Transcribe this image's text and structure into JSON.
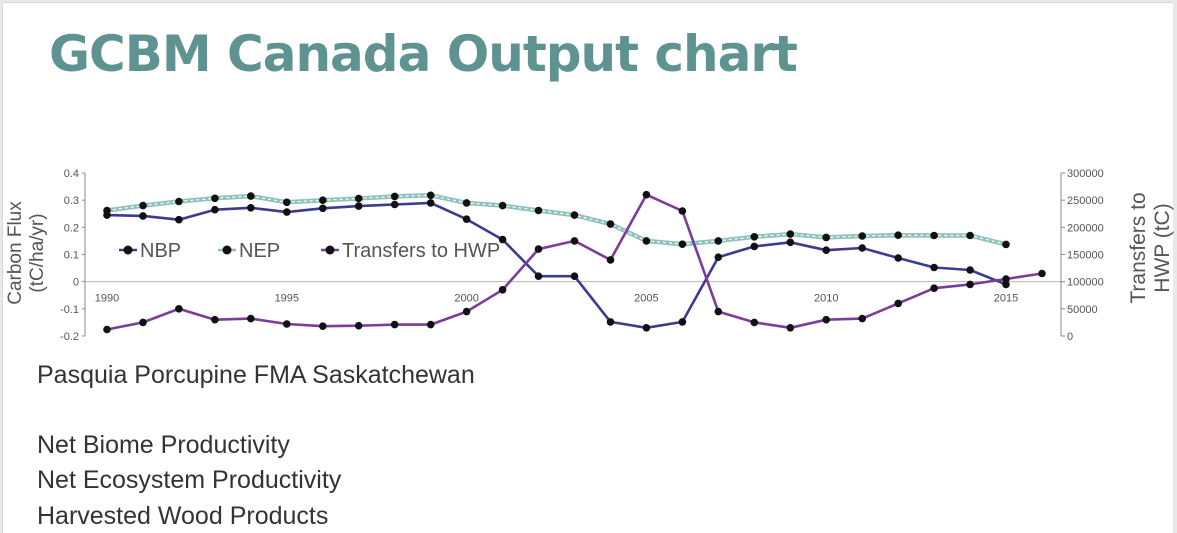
{
  "title": "GCBM Canada Output chart",
  "captions": {
    "location": "Pasquia Porcupine FMA Saskatchewan",
    "nbp": "Net Biome Productivity",
    "nep": "Net Ecosystem Productivity",
    "hwp": "Harvested Wood Products"
  },
  "colors": {
    "nbp": "#3b3b8f",
    "nep": "#8fc1bd",
    "hwp": "#7b3c9a",
    "title": "#5e9391"
  },
  "chart_data": {
    "type": "line",
    "ylabel": "Carbon Flux (tC/ha/yr)",
    "y2label": "Transfers to HWP (tC)",
    "ylim": [
      -0.2,
      0.4
    ],
    "y2lim": [
      0,
      300000
    ],
    "xlim": [
      1990,
      2016
    ],
    "x_ticks": [
      1990,
      1995,
      2000,
      2005,
      2010,
      2015
    ],
    "y_ticks": [
      "-0.2",
      "-0.1",
      "0",
      "0.1",
      "0.2",
      "0.3",
      "0.4"
    ],
    "y2_ticks": [
      "0",
      "50000",
      "100000",
      "150000",
      "200000",
      "250000",
      "300000"
    ],
    "legend_position": "inside-left",
    "series": [
      {
        "name": "NBP",
        "axis": "left",
        "x": [
          1990,
          1991,
          1992,
          1993,
          1994,
          1995,
          1996,
          1997,
          1998,
          1999,
          2000,
          2001,
          2002,
          2003,
          2004,
          2005,
          2006,
          2007,
          2008,
          2009,
          2010,
          2011,
          2012,
          2013,
          2014,
          2015
        ],
        "values": [
          0.245,
          0.242,
          0.228,
          0.265,
          0.272,
          0.256,
          0.27,
          0.278,
          0.284,
          0.29,
          0.23,
          0.155,
          0.02,
          0.02,
          -0.148,
          -0.17,
          -0.148,
          0.09,
          0.13,
          0.145,
          0.116,
          0.124,
          0.087,
          0.052,
          0.043,
          -0.01
        ]
      },
      {
        "name": "NEP",
        "axis": "left",
        "x": [
          1990,
          1991,
          1992,
          1993,
          1994,
          1995,
          1996,
          1997,
          1998,
          1999,
          2000,
          2001,
          2002,
          2003,
          2004,
          2005,
          2006,
          2007,
          2008,
          2009,
          2010,
          2011,
          2012,
          2013,
          2014,
          2015
        ],
        "values": [
          0.262,
          0.28,
          0.295,
          0.307,
          0.315,
          0.292,
          0.3,
          0.306,
          0.314,
          0.318,
          0.29,
          0.28,
          0.262,
          0.245,
          0.212,
          0.15,
          0.138,
          0.15,
          0.165,
          0.175,
          0.163,
          0.168,
          0.171,
          0.17,
          0.17,
          0.137
        ]
      },
      {
        "name": "Transfers to HWP",
        "axis": "right",
        "x": [
          1990,
          1991,
          1992,
          1993,
          1994,
          1995,
          1996,
          1997,
          1998,
          1999,
          2000,
          2001,
          2002,
          2003,
          2004,
          2005,
          2006,
          2007,
          2008,
          2009,
          2010,
          2011,
          2012,
          2013,
          2014,
          2015,
          2016
        ],
        "values": [
          12000,
          25000,
          50000,
          30000,
          32000,
          22000,
          18000,
          19000,
          21000,
          21000,
          45000,
          85000,
          160000,
          175000,
          140000,
          260000,
          230000,
          45000,
          25000,
          15000,
          30000,
          32000,
          60000,
          88000,
          95000,
          105000,
          115000
        ]
      }
    ]
  }
}
